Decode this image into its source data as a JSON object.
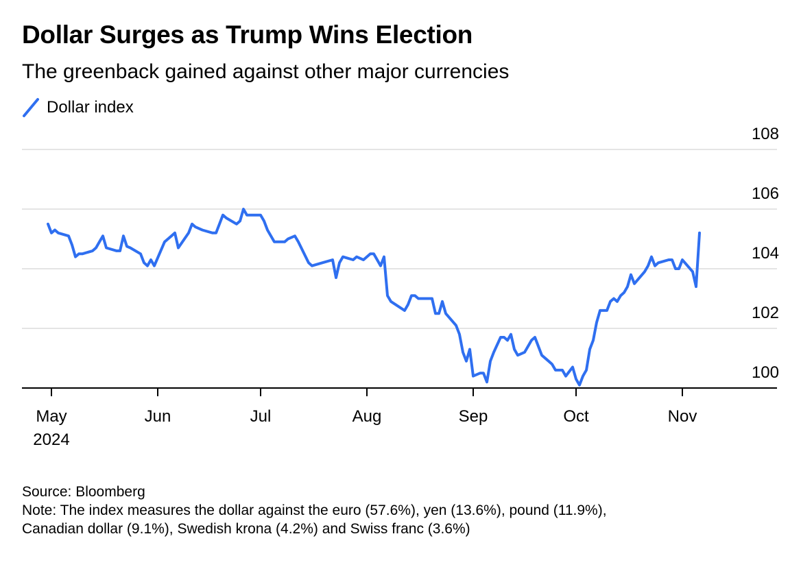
{
  "header": {
    "title": "Dollar Surges as Trump Wins Election",
    "subtitle": "The greenback gained against other major currencies"
  },
  "legend": {
    "label": "Dollar index",
    "color": "#2f6ff0"
  },
  "footer": {
    "source": "Source: Bloomberg",
    "note_line1": "Note: The index measures the dollar against the euro (57.6%), yen (13.6%), pound (11.9%),",
    "note_line2": "Canadian dollar (9.1%), Swedish krona (4.2%) and Swiss franc (3.6%)"
  },
  "chart_data": {
    "type": "line",
    "title": "Dollar Surges as Trump Wins Election",
    "subtitle": "The greenback gained against other major currencies",
    "xlabel": "",
    "ylabel": "",
    "ylim": [
      100,
      108
    ],
    "yticks": [
      100,
      102,
      104,
      106,
      108
    ],
    "grid": true,
    "legend_position": "top-left",
    "x_ticks": [
      {
        "date": "2024-05-01",
        "label": "May",
        "sublabel": "2024"
      },
      {
        "date": "2024-06-01",
        "label": "Jun"
      },
      {
        "date": "2024-07-01",
        "label": "Jul"
      },
      {
        "date": "2024-08-01",
        "label": "Aug"
      },
      {
        "date": "2024-09-01",
        "label": "Sep"
      },
      {
        "date": "2024-10-01",
        "label": "Oct"
      },
      {
        "date": "2024-11-01",
        "label": "Nov"
      }
    ],
    "series": [
      {
        "name": "Dollar index",
        "color": "#2f6ff0",
        "points": [
          [
            "2024-04-30",
            105.5
          ],
          [
            "2024-05-01",
            105.2
          ],
          [
            "2024-05-02",
            105.3
          ],
          [
            "2024-05-03",
            105.2
          ],
          [
            "2024-05-06",
            105.1
          ],
          [
            "2024-05-07",
            104.8
          ],
          [
            "2024-05-08",
            104.4
          ],
          [
            "2024-05-09",
            104.5
          ],
          [
            "2024-05-10",
            104.5
          ],
          [
            "2024-05-13",
            104.6
          ],
          [
            "2024-05-14",
            104.7
          ],
          [
            "2024-05-15",
            104.9
          ],
          [
            "2024-05-16",
            105.1
          ],
          [
            "2024-05-17",
            104.7
          ],
          [
            "2024-05-20",
            104.6
          ],
          [
            "2024-05-21",
            104.6
          ],
          [
            "2024-05-22",
            105.1
          ],
          [
            "2024-05-23",
            104.75
          ],
          [
            "2024-05-24",
            104.7
          ],
          [
            "2024-05-27",
            104.5
          ],
          [
            "2024-05-28",
            104.2
          ],
          [
            "2024-05-29",
            104.1
          ],
          [
            "2024-05-30",
            104.3
          ],
          [
            "2024-05-31",
            104.1
          ],
          [
            "2024-06-03",
            104.9
          ],
          [
            "2024-06-04",
            105.0
          ],
          [
            "2024-06-05",
            105.1
          ],
          [
            "2024-06-06",
            105.2
          ],
          [
            "2024-06-07",
            104.7
          ],
          [
            "2024-06-10",
            105.2
          ],
          [
            "2024-06-11",
            105.5
          ],
          [
            "2024-06-12",
            105.4
          ],
          [
            "2024-06-14",
            105.3
          ],
          [
            "2024-06-17",
            105.2
          ],
          [
            "2024-06-18",
            105.2
          ],
          [
            "2024-06-19",
            105.5
          ],
          [
            "2024-06-20",
            105.8
          ],
          [
            "2024-06-21",
            105.7
          ],
          [
            "2024-06-24",
            105.5
          ],
          [
            "2024-06-25",
            105.6
          ],
          [
            "2024-06-26",
            106.0
          ],
          [
            "2024-06-27",
            105.8
          ],
          [
            "2024-06-28",
            105.8
          ],
          [
            "2024-07-01",
            105.8
          ],
          [
            "2024-07-02",
            105.6
          ],
          [
            "2024-07-03",
            105.3
          ],
          [
            "2024-07-05",
            104.9
          ],
          [
            "2024-07-08",
            104.9
          ],
          [
            "2024-07-09",
            105.0
          ],
          [
            "2024-07-11",
            105.1
          ],
          [
            "2024-07-12",
            104.9
          ],
          [
            "2024-07-15",
            104.2
          ],
          [
            "2024-07-16",
            104.1
          ],
          [
            "2024-07-19",
            104.2
          ],
          [
            "2024-07-22",
            104.3
          ],
          [
            "2024-07-23",
            103.7
          ],
          [
            "2024-07-24",
            104.2
          ],
          [
            "2024-07-25",
            104.4
          ],
          [
            "2024-07-28",
            104.3
          ],
          [
            "2024-07-29",
            104.4
          ],
          [
            "2024-07-31",
            104.3
          ],
          [
            "2024-08-02",
            104.5
          ],
          [
            "2024-08-03",
            104.5
          ],
          [
            "2024-08-05",
            104.1
          ],
          [
            "2024-08-06",
            104.4
          ],
          [
            "2024-08-07",
            103.1
          ],
          [
            "2024-08-08",
            102.9
          ],
          [
            "2024-08-12",
            102.6
          ],
          [
            "2024-08-13",
            102.8
          ],
          [
            "2024-08-14",
            103.1
          ],
          [
            "2024-08-15",
            103.1
          ],
          [
            "2024-08-16",
            103.0
          ],
          [
            "2024-08-19",
            103.0
          ],
          [
            "2024-08-20",
            103.0
          ],
          [
            "2024-08-21",
            102.5
          ],
          [
            "2024-08-22",
            102.5
          ],
          [
            "2024-08-23",
            102.9
          ],
          [
            "2024-08-24",
            102.5
          ],
          [
            "2024-08-27",
            102.1
          ],
          [
            "2024-08-28",
            101.8
          ],
          [
            "2024-08-29",
            101.2
          ],
          [
            "2024-08-30",
            100.9
          ],
          [
            "2024-08-31",
            101.3
          ],
          [
            "2024-09-01",
            100.4
          ],
          [
            "2024-09-03",
            100.5
          ],
          [
            "2024-09-04",
            100.5
          ],
          [
            "2024-09-05",
            100.2
          ],
          [
            "2024-09-06",
            100.9
          ],
          [
            "2024-09-07",
            101.2
          ],
          [
            "2024-09-09",
            101.7
          ],
          [
            "2024-09-10",
            101.7
          ],
          [
            "2024-09-11",
            101.6
          ],
          [
            "2024-09-12",
            101.8
          ],
          [
            "2024-09-13",
            101.3
          ],
          [
            "2024-09-14",
            101.1
          ],
          [
            "2024-09-16",
            101.2
          ],
          [
            "2024-09-17",
            101.4
          ],
          [
            "2024-09-18",
            101.6
          ],
          [
            "2024-09-19",
            101.7
          ],
          [
            "2024-09-20",
            101.4
          ],
          [
            "2024-09-21",
            101.1
          ],
          [
            "2024-09-23",
            100.9
          ],
          [
            "2024-09-24",
            100.8
          ],
          [
            "2024-09-25",
            100.6
          ],
          [
            "2024-09-26",
            100.6
          ],
          [
            "2024-09-27",
            100.6
          ],
          [
            "2024-09-28",
            100.4
          ],
          [
            "2024-09-30",
            100.7
          ],
          [
            "2024-10-01",
            100.3
          ],
          [
            "2024-10-02",
            100.1
          ],
          [
            "2024-10-03",
            100.4
          ],
          [
            "2024-10-04",
            100.6
          ],
          [
            "2024-10-05",
            101.3
          ],
          [
            "2024-10-06",
            101.6
          ],
          [
            "2024-10-07",
            102.2
          ],
          [
            "2024-10-08",
            102.6
          ],
          [
            "2024-10-09",
            102.6
          ],
          [
            "2024-10-10",
            102.6
          ],
          [
            "2024-10-11",
            102.9
          ],
          [
            "2024-10-12",
            103.0
          ],
          [
            "2024-10-13",
            102.9
          ],
          [
            "2024-10-14",
            103.1
          ],
          [
            "2024-10-15",
            103.2
          ],
          [
            "2024-10-16",
            103.4
          ],
          [
            "2024-10-17",
            103.8
          ],
          [
            "2024-10-18",
            103.5
          ],
          [
            "2024-10-21",
            103.9
          ],
          [
            "2024-10-22",
            104.1
          ],
          [
            "2024-10-23",
            104.4
          ],
          [
            "2024-10-24",
            104.1
          ],
          [
            "2024-10-25",
            104.2
          ],
          [
            "2024-10-28",
            104.3
          ],
          [
            "2024-10-29",
            104.3
          ],
          [
            "2024-10-30",
            104.0
          ],
          [
            "2024-10-31",
            104.0
          ],
          [
            "2024-11-01",
            104.3
          ],
          [
            "2024-11-04",
            103.9
          ],
          [
            "2024-11-05",
            103.4
          ],
          [
            "2024-11-06",
            105.2
          ]
        ]
      }
    ]
  }
}
